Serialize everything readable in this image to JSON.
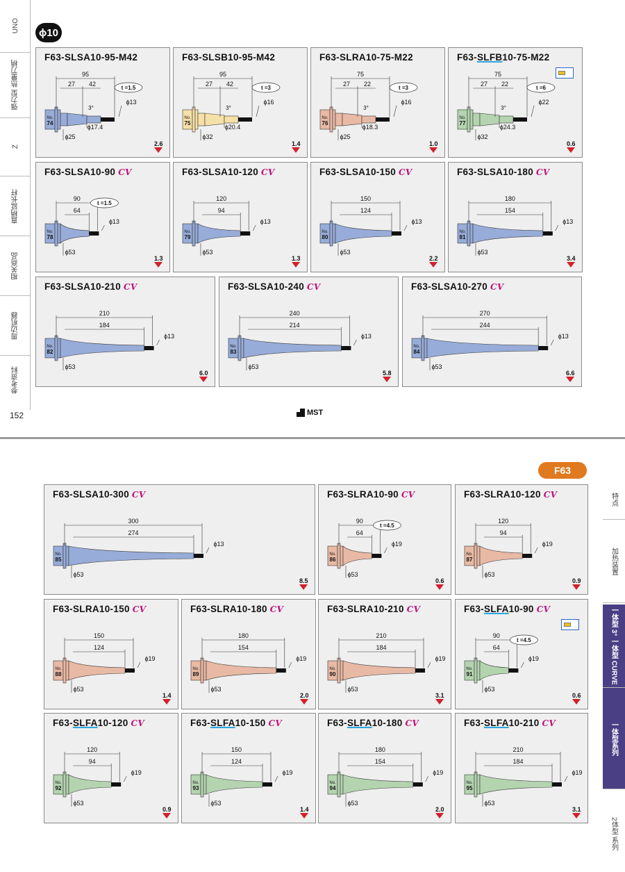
{
  "left_sidebar": {
    "items": [
      {
        "label": "UNO"
      },
      {
        "label": "强力型 热量刀柄"
      },
      {
        "label": "Z"
      },
      {
        "label": "直柄延长杆"
      },
      {
        "label": "相关商品"
      },
      {
        "label": "周边机器"
      },
      {
        "label": "参考资料"
      }
    ]
  },
  "page_number": "152",
  "logo_text": "MST",
  "diameter_badge": "ϕ10",
  "series_badge": "F63",
  "right_sidebar": {
    "items": [
      {
        "label": "特点"
      },
      {
        "label": "加热装置"
      },
      {
        "label": "一体型 3° 一体型 CURVE"
      },
      {
        "label": "一体型系列"
      },
      {
        "label": "2体型 系列"
      }
    ]
  },
  "colors": {
    "SA": "#97acd8",
    "SB": "#f5e0a8",
    "RA": "#e8b9a4",
    "FB": "#b4d4b0",
    "FA": "#b4d4b0",
    "weight_arrow": "#d3202a",
    "cv": "#c0117a",
    "active_tab": "#4a3f84",
    "badge": "#e07a1e"
  },
  "cards": [
    {
      "pre": "F63-",
      "u": "",
      "post": "SLSA10-95-M42",
      "cv": "",
      "no": "74",
      "color": "SA",
      "kind": "m",
      "L": "95",
      "l1": "27",
      "l2": "42",
      "t": "t =1.5",
      "angle": "3°",
      "d1": "ϕ13",
      "d2": "ϕ17.4",
      "d3": "ϕ25",
      "w": "2.6"
    },
    {
      "pre": "F63-",
      "u": "",
      "post": "SLSB10-95-M42",
      "cv": "",
      "no": "75",
      "color": "SB",
      "kind": "m",
      "L": "95",
      "l1": "27",
      "l2": "42",
      "t": "t =3",
      "angle": "3°",
      "d1": "ϕ16",
      "d2": "ϕ20.4",
      "d3": "ϕ32",
      "w": "1.4"
    },
    {
      "pre": "F63-",
      "u": "",
      "post": "SLRA10-75-M22",
      "cv": "",
      "no": "76",
      "color": "RA",
      "kind": "m",
      "L": "75",
      "l1": "27",
      "l2": "22",
      "t": "t =3",
      "angle": "3°",
      "d1": "ϕ16",
      "d2": "ϕ18.3",
      "d3": "ϕ25",
      "w": "1.0"
    },
    {
      "pre": "F63-",
      "u": "SLFB",
      "post": "10-75-M22",
      "cv": "",
      "no": "77",
      "color": "FB",
      "kind": "m",
      "L": "75",
      "l1": "27",
      "l2": "22",
      "t": "t =6",
      "angle": "3°",
      "d1": "ϕ22",
      "d2": "ϕ24.3",
      "d3": "ϕ32",
      "w": "0.6",
      "icon": true
    },
    {
      "pre": "F63-",
      "u": "",
      "post": "SLSA10-90",
      "cv": "CV",
      "no": "78",
      "color": "SA",
      "kind": "c",
      "L": "90",
      "l1": "64",
      "t": "t =1.5",
      "d1": "ϕ13",
      "d3": "ϕ53",
      "w": "1.3"
    },
    {
      "pre": "F63-",
      "u": "",
      "post": "SLSA10-120",
      "cv": "CV",
      "no": "79",
      "color": "SA",
      "kind": "c",
      "L": "120",
      "l1": "94",
      "d1": "ϕ13",
      "d3": "ϕ53",
      "w": "1.3"
    },
    {
      "pre": "F63-",
      "u": "",
      "post": "SLSA10-150",
      "cv": "CV",
      "no": "80",
      "color": "SA",
      "kind": "c",
      "L": "150",
      "l1": "124",
      "d1": "ϕ13",
      "d3": "ϕ53",
      "w": "2.2"
    },
    {
      "pre": "F63-",
      "u": "",
      "post": "SLSA10-180",
      "cv": "CV",
      "no": "81",
      "color": "SA",
      "kind": "c",
      "L": "180",
      "l1": "154",
      "d1": "ϕ13",
      "d3": "ϕ53",
      "w": "3.4"
    },
    {
      "pre": "F63-",
      "u": "",
      "post": "SLSA10-210",
      "cv": "CV",
      "no": "82",
      "color": "SA",
      "kind": "c",
      "L": "210",
      "l1": "184",
      "d1": "ϕ13",
      "d3": "ϕ53",
      "w": "6.0"
    },
    {
      "pre": "F63-",
      "u": "",
      "post": "SLSA10-240",
      "cv": "CV",
      "no": "83",
      "color": "SA",
      "kind": "c",
      "L": "240",
      "l1": "214",
      "d1": "ϕ13",
      "d3": "ϕ53",
      "w": "5.8"
    },
    {
      "pre": "F63-",
      "u": "",
      "post": "SLSA10-270",
      "cv": "CV",
      "no": "84",
      "color": "SA",
      "kind": "c",
      "L": "270",
      "l1": "244",
      "d1": "ϕ13",
      "d3": "ϕ53",
      "w": "6.6"
    },
    {
      "pre": "F63-",
      "u": "",
      "post": "SLSA10-300",
      "cv": "CV",
      "no": "85",
      "color": "SA",
      "kind": "c",
      "L": "300",
      "l1": "274",
      "d1": "ϕ13",
      "d3": "ϕ53",
      "w": "8.5"
    },
    {
      "pre": "F63-",
      "u": "",
      "post": "SLRA10-90",
      "cv": "CV",
      "no": "86",
      "color": "RA",
      "kind": "c",
      "L": "90",
      "l1": "64",
      "t": "t =4.5",
      "d1": "ϕ19",
      "d3": "ϕ53",
      "w": "0.6"
    },
    {
      "pre": "F63-",
      "u": "",
      "post": "SLRA10-120",
      "cv": "CV",
      "no": "87",
      "color": "RA",
      "kind": "c",
      "L": "120",
      "l1": "94",
      "d1": "ϕ19",
      "d3": "ϕ53",
      "w": "0.9"
    },
    {
      "pre": "F63-",
      "u": "",
      "post": "SLRA10-150",
      "cv": "CV",
      "no": "88",
      "color": "RA",
      "kind": "c",
      "L": "150",
      "l1": "124",
      "d1": "ϕ19",
      "d3": "ϕ53",
      "w": "1.4"
    },
    {
      "pre": "F63-",
      "u": "",
      "post": "SLRA10-180",
      "cv": "CV",
      "no": "89",
      "color": "RA",
      "kind": "c",
      "L": "180",
      "l1": "154",
      "d1": "ϕ19",
      "d3": "ϕ53",
      "w": "2.0"
    },
    {
      "pre": "F63-",
      "u": "",
      "post": "SLRA10-210",
      "cv": "CV",
      "no": "90",
      "color": "RA",
      "kind": "c",
      "L": "210",
      "l1": "184",
      "d1": "ϕ19",
      "d3": "ϕ53",
      "w": "3.1"
    },
    {
      "pre": "F63-",
      "u": "SLFA",
      "post": "10-90",
      "cv": "CV",
      "no": "91",
      "color": "FA",
      "kind": "c",
      "L": "90",
      "l1": "64",
      "t": "t =4.5",
      "d1": "ϕ19",
      "d3": "ϕ53",
      "w": "0.6",
      "icon": true
    },
    {
      "pre": "F63-",
      "u": "SLFA",
      "post": "10-120",
      "cv": "CV",
      "no": "92",
      "color": "FA",
      "kind": "c",
      "L": "120",
      "l1": "94",
      "d1": "ϕ19",
      "d3": "ϕ53",
      "w": "0.9"
    },
    {
      "pre": "F63-",
      "u": "SLFA",
      "post": "10-150",
      "cv": "CV",
      "no": "93",
      "color": "FA",
      "kind": "c",
      "L": "150",
      "l1": "124",
      "d1": "ϕ19",
      "d3": "ϕ53",
      "w": "1.4"
    },
    {
      "pre": "F63-",
      "u": "SLFA",
      "post": "10-180",
      "cv": "CV",
      "no": "94",
      "color": "FA",
      "kind": "c",
      "L": "180",
      "l1": "154",
      "d1": "ϕ19",
      "d3": "ϕ53",
      "w": "2.0"
    },
    {
      "pre": "F63-",
      "u": "SLFA",
      "post": "10-210",
      "cv": "CV",
      "no": "95",
      "color": "FA",
      "kind": "c",
      "L": "210",
      "l1": "184",
      "d1": "ϕ19",
      "d3": "ϕ53",
      "w": "3.1"
    }
  ]
}
